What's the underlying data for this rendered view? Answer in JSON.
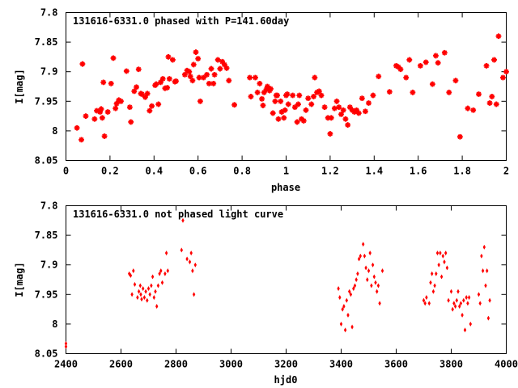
{
  "chart_data": [
    {
      "type": "scatter",
      "title": "131616-6331.0 phased with P=141.60day",
      "xlabel": "phase",
      "ylabel": "I[mag]",
      "xlim": [
        0,
        2
      ],
      "ylim": [
        8.05,
        7.8
      ],
      "y_inverted": true,
      "xticks": [
        "0",
        "0.2",
        "0.4",
        "0.6",
        "0.8",
        "1",
        "1.2",
        "1.4",
        "1.6",
        "1.8",
        "2"
      ],
      "xtick_values": [
        0,
        0.2,
        0.4,
        0.6,
        0.8,
        1.0,
        1.2,
        1.4,
        1.6,
        1.8,
        2.0
      ],
      "yticks": [
        "7.8",
        "7.85",
        "7.9",
        "7.95",
        "8",
        "8.05"
      ],
      "ytick_values": [
        7.8,
        7.85,
        7.9,
        7.95,
        8.0,
        8.05
      ],
      "grid": false,
      "marker": "star",
      "color": "#ff0000",
      "points": [
        [
          0.05,
          7.995
        ],
        [
          0.07,
          8.015
        ],
        [
          0.075,
          7.887
        ],
        [
          0.09,
          7.975
        ],
        [
          0.13,
          7.98
        ],
        [
          0.14,
          7.966
        ],
        [
          0.155,
          7.968
        ],
        [
          0.16,
          7.963
        ],
        [
          0.165,
          7.978
        ],
        [
          0.17,
          7.918
        ],
        [
          0.175,
          8.009
        ],
        [
          0.19,
          7.968
        ],
        [
          0.205,
          7.92
        ],
        [
          0.215,
          7.877
        ],
        [
          0.225,
          7.962
        ],
        [
          0.23,
          7.954
        ],
        [
          0.24,
          7.948
        ],
        [
          0.25,
          7.95
        ],
        [
          0.275,
          7.899
        ],
        [
          0.29,
          7.96
        ],
        [
          0.295,
          7.985
        ],
        [
          0.31,
          7.933
        ],
        [
          0.32,
          7.926
        ],
        [
          0.33,
          7.896
        ],
        [
          0.34,
          7.937
        ],
        [
          0.345,
          7.938
        ],
        [
          0.36,
          7.943
        ],
        [
          0.37,
          7.937
        ],
        [
          0.38,
          7.966
        ],
        [
          0.39,
          7.958
        ],
        [
          0.405,
          7.923
        ],
        [
          0.41,
          7.921
        ],
        [
          0.42,
          7.955
        ],
        [
          0.43,
          7.918
        ],
        [
          0.44,
          7.912
        ],
        [
          0.45,
          7.928
        ],
        [
          0.46,
          7.927
        ],
        [
          0.465,
          7.875
        ],
        [
          0.47,
          7.912
        ],
        [
          0.485,
          7.88
        ],
        [
          0.495,
          7.917
        ],
        [
          0.5,
          7.916
        ],
        [
          0.54,
          7.905
        ],
        [
          0.55,
          7.898
        ],
        [
          0.56,
          7.9
        ],
        [
          0.565,
          7.908
        ],
        [
          0.575,
          7.915
        ],
        [
          0.58,
          7.888
        ],
        [
          0.59,
          7.867
        ],
        [
          0.6,
          7.878
        ],
        [
          0.605,
          7.91
        ],
        [
          0.61,
          7.95
        ],
        [
          0.625,
          7.91
        ],
        [
          0.64,
          7.905
        ],
        [
          0.65,
          7.92
        ],
        [
          0.66,
          7.895
        ],
        [
          0.67,
          7.92
        ],
        [
          0.675,
          7.905
        ],
        [
          0.69,
          7.88
        ],
        [
          0.7,
          7.895
        ],
        [
          0.71,
          7.883
        ],
        [
          0.72,
          7.888
        ],
        [
          0.73,
          7.894
        ],
        [
          0.74,
          7.915
        ],
        [
          0.765,
          7.956
        ],
        [
          0.835,
          7.91
        ],
        [
          0.84,
          7.942
        ],
        [
          0.86,
          7.91
        ],
        [
          0.87,
          7.935
        ],
        [
          0.88,
          7.92
        ],
        [
          0.89,
          7.946
        ],
        [
          0.895,
          7.957
        ],
        [
          0.9,
          7.935
        ],
        [
          0.91,
          7.93
        ],
        [
          0.915,
          7.925
        ],
        [
          0.925,
          7.932
        ],
        [
          0.93,
          7.929
        ],
        [
          0.94,
          7.97
        ],
        [
          0.95,
          7.95
        ],
        [
          0.955,
          7.94
        ],
        [
          0.96,
          7.94
        ],
        [
          0.965,
          7.98
        ],
        [
          0.975,
          7.95
        ],
        [
          0.98,
          7.968
        ],
        [
          0.99,
          7.978
        ],
        [
          0.995,
          7.965
        ],
        [
          1.0,
          7.94
        ],
        [
          1.005,
          7.938
        ],
        [
          1.01,
          7.955
        ],
        [
          1.03,
          7.94
        ],
        [
          1.04,
          7.96
        ],
        [
          1.05,
          7.985
        ],
        [
          1.055,
          7.955
        ],
        [
          1.06,
          7.94
        ],
        [
          1.07,
          7.98
        ],
        [
          1.08,
          7.983
        ],
        [
          1.09,
          7.965
        ],
        [
          1.1,
          7.945
        ],
        [
          1.115,
          7.955
        ],
        [
          1.125,
          7.942
        ],
        [
          1.13,
          7.91
        ],
        [
          1.14,
          7.935
        ],
        [
          1.15,
          7.933
        ],
        [
          1.16,
          7.94
        ],
        [
          1.175,
          7.96
        ],
        [
          1.19,
          7.978
        ],
        [
          1.2,
          8.005
        ],
        [
          1.205,
          7.978
        ],
        [
          1.22,
          7.962
        ],
        [
          1.23,
          7.95
        ],
        [
          1.24,
          7.96
        ],
        [
          1.25,
          7.972
        ],
        [
          1.26,
          7.965
        ],
        [
          1.27,
          7.98
        ],
        [
          1.28,
          7.99
        ],
        [
          1.29,
          7.96
        ],
        [
          1.3,
          7.965
        ],
        [
          1.31,
          7.968
        ],
        [
          1.32,
          7.965
        ],
        [
          1.33,
          7.97
        ],
        [
          1.345,
          7.945
        ],
        [
          1.36,
          7.967
        ],
        [
          1.375,
          7.953
        ],
        [
          1.395,
          7.94
        ],
        [
          1.42,
          7.908
        ],
        [
          1.47,
          7.934
        ],
        [
          1.5,
          7.89
        ],
        [
          1.51,
          7.892
        ],
        [
          1.52,
          7.896
        ],
        [
          1.545,
          7.91
        ],
        [
          1.56,
          7.88
        ],
        [
          1.575,
          7.935
        ],
        [
          1.61,
          7.89
        ],
        [
          1.635,
          7.884
        ],
        [
          1.665,
          7.921
        ],
        [
          1.68,
          7.873
        ],
        [
          1.69,
          7.885
        ],
        [
          1.72,
          7.868
        ],
        [
          1.74,
          7.935
        ],
        [
          1.77,
          7.915
        ],
        [
          1.79,
          8.01
        ],
        [
          1.825,
          7.962
        ],
        [
          1.85,
          7.965
        ],
        [
          1.875,
          7.938
        ],
        [
          1.91,
          7.89
        ],
        [
          1.925,
          7.953
        ],
        [
          1.935,
          7.942
        ],
        [
          1.945,
          7.88
        ],
        [
          1.955,
          7.955
        ],
        [
          1.965,
          7.84
        ],
        [
          1.985,
          7.91
        ],
        [
          2.0,
          7.9
        ]
      ]
    },
    {
      "type": "scatter",
      "title": "131616-6331.0 not phased light curve",
      "xlabel": "hjd0",
      "ylabel": "I[mag]",
      "xlim": [
        2400,
        4000
      ],
      "ylim": [
        8.05,
        7.8
      ],
      "y_inverted": true,
      "xticks": [
        "2400",
        "2600",
        "2800",
        "3000",
        "3200",
        "3400",
        "3600",
        "3800",
        "4000"
      ],
      "xtick_values": [
        2400,
        2600,
        2800,
        3000,
        3200,
        3400,
        3600,
        3800,
        4000
      ],
      "yticks": [
        "7.8",
        "7.85",
        "7.9",
        "7.95",
        "8",
        "8.05"
      ],
      "ytick_values": [
        7.8,
        7.85,
        7.9,
        7.95,
        8.0,
        8.05
      ],
      "grid": false,
      "marker": "diamond",
      "color": "#ff0000",
      "points": [
        [
          2400,
          8.033
        ],
        [
          2400,
          8.038
        ],
        [
          2630,
          7.915
        ],
        [
          2635,
          7.918
        ],
        [
          2640,
          7.95
        ],
        [
          2645,
          7.91
        ],
        [
          2650,
          7.933
        ],
        [
          2660,
          7.955
        ],
        [
          2665,
          7.945
        ],
        [
          2670,
          7.935
        ],
        [
          2672,
          7.95
        ],
        [
          2675,
          7.958
        ],
        [
          2680,
          7.94
        ],
        [
          2685,
          7.955
        ],
        [
          2690,
          7.945
        ],
        [
          2695,
          7.96
        ],
        [
          2700,
          7.94
        ],
        [
          2705,
          7.95
        ],
        [
          2710,
          7.935
        ],
        [
          2715,
          7.92
        ],
        [
          2720,
          7.955
        ],
        [
          2725,
          7.945
        ],
        [
          2730,
          7.97
        ],
        [
          2735,
          7.935
        ],
        [
          2740,
          7.915
        ],
        [
          2745,
          7.91
        ],
        [
          2750,
          7.93
        ],
        [
          2760,
          7.915
        ],
        [
          2765,
          7.88
        ],
        [
          2770,
          7.91
        ],
        [
          2820,
          7.875
        ],
        [
          2825,
          7.825
        ],
        [
          2840,
          7.89
        ],
        [
          2850,
          7.895
        ],
        [
          2855,
          7.88
        ],
        [
          2860,
          7.91
        ],
        [
          2865,
          7.95
        ],
        [
          2870,
          7.9
        ],
        [
          3390,
          7.94
        ],
        [
          3395,
          7.955
        ],
        [
          3400,
          8.0
        ],
        [
          3405,
          7.975
        ],
        [
          3410,
          7.97
        ],
        [
          3415,
          8.01
        ],
        [
          3420,
          7.96
        ],
        [
          3425,
          7.985
        ],
        [
          3430,
          7.945
        ],
        [
          3435,
          7.95
        ],
        [
          3440,
          8.005
        ],
        [
          3445,
          7.94
        ],
        [
          3450,
          7.935
        ],
        [
          3455,
          7.925
        ],
        [
          3460,
          7.915
        ],
        [
          3465,
          7.89
        ],
        [
          3470,
          7.885
        ],
        [
          3480,
          7.865
        ],
        [
          3485,
          7.885
        ],
        [
          3490,
          7.905
        ],
        [
          3495,
          7.925
        ],
        [
          3500,
          7.91
        ],
        [
          3505,
          7.88
        ],
        [
          3510,
          7.935
        ],
        [
          3515,
          7.9
        ],
        [
          3520,
          7.92
        ],
        [
          3525,
          7.93
        ],
        [
          3530,
          7.945
        ],
        [
          3535,
          7.935
        ],
        [
          3540,
          7.965
        ],
        [
          3550,
          7.91
        ],
        [
          3700,
          7.96
        ],
        [
          3705,
          7.965
        ],
        [
          3710,
          7.955
        ],
        [
          3720,
          7.965
        ],
        [
          3725,
          7.93
        ],
        [
          3730,
          7.915
        ],
        [
          3735,
          7.945
        ],
        [
          3740,
          7.935
        ],
        [
          3745,
          7.915
        ],
        [
          3750,
          7.88
        ],
        [
          3755,
          7.9
        ],
        [
          3760,
          7.88
        ],
        [
          3765,
          7.92
        ],
        [
          3770,
          7.885
        ],
        [
          3775,
          7.895
        ],
        [
          3780,
          7.88
        ],
        [
          3785,
          7.905
        ],
        [
          3790,
          7.96
        ],
        [
          3800,
          7.945
        ],
        [
          3805,
          7.975
        ],
        [
          3810,
          7.965
        ],
        [
          3815,
          7.97
        ],
        [
          3820,
          7.96
        ],
        [
          3825,
          7.945
        ],
        [
          3830,
          7.97
        ],
        [
          3835,
          7.965
        ],
        [
          3840,
          7.985
        ],
        [
          3845,
          7.96
        ],
        [
          3850,
          8.01
        ],
        [
          3855,
          7.955
        ],
        [
          3860,
          7.965
        ],
        [
          3865,
          7.955
        ],
        [
          3870,
          8.0
        ],
        [
          3900,
          7.95
        ],
        [
          3905,
          7.965
        ],
        [
          3910,
          7.885
        ],
        [
          3915,
          7.91
        ],
        [
          3920,
          7.87
        ],
        [
          3925,
          7.935
        ],
        [
          3930,
          7.91
        ],
        [
          3935,
          7.99
        ],
        [
          3940,
          7.96
        ]
      ]
    }
  ]
}
